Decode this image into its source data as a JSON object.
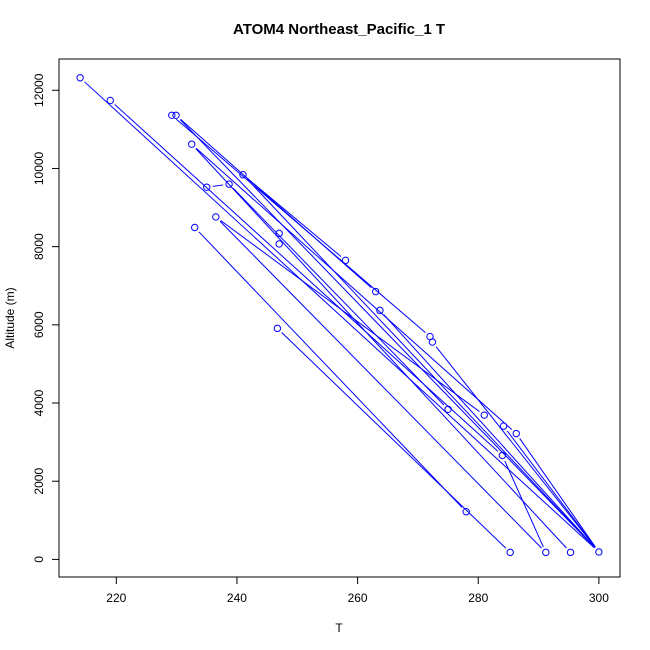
{
  "chart_data": {
    "type": "scatter",
    "title": "ATOM4 Northeast_Pacific_1 T",
    "xlabel": "T",
    "ylabel": "Altitude (m)",
    "xlim": [
      210.5,
      303.5
    ],
    "ylim": [
      -450,
      12800
    ],
    "x_ticks": [
      220,
      240,
      260,
      280,
      300
    ],
    "y_ticks": [
      0,
      2000,
      4000,
      6000,
      8000,
      10000,
      12000
    ],
    "x_tick_labels": [
      "220",
      "240",
      "260",
      "280",
      "300"
    ],
    "y_tick_labels": [
      "0",
      "2000",
      "4000",
      "6000",
      "8000",
      "10000",
      "12000"
    ],
    "grid": false,
    "marker": "open-circle",
    "connect_points": true,
    "color": "#0000ff",
    "points": [
      [
        214.0,
        12320
      ],
      [
        219.0,
        11740
      ],
      [
        229.2,
        11360
      ],
      [
        229.9,
        11360
      ],
      [
        232.5,
        10620
      ],
      [
        241.0,
        9840
      ],
      [
        238.7,
        9600
      ],
      [
        235.0,
        9520
      ],
      [
        236.5,
        8760
      ],
      [
        233.0,
        8490
      ],
      [
        247.0,
        8340
      ],
      [
        247.0,
        8070
      ],
      [
        258.0,
        7650
      ],
      [
        263.0,
        6850
      ],
      [
        263.7,
        6370
      ],
      [
        246.7,
        5910
      ],
      [
        272.0,
        5700
      ],
      [
        272.4,
        5560
      ],
      [
        275.0,
        3840
      ],
      [
        281.0,
        3690
      ],
      [
        284.2,
        3410
      ],
      [
        286.3,
        3220
      ],
      [
        284.0,
        2660
      ],
      [
        278.0,
        1220
      ],
      [
        285.3,
        180
      ],
      [
        291.2,
        180
      ],
      [
        295.3,
        180
      ],
      [
        300.0,
        190
      ]
    ],
    "segments": [
      [
        [
          214.0,
          12320
        ],
        [
          300.0,
          190
        ]
      ],
      [
        [
          219.0,
          11740
        ],
        [
          284.0,
          2660
        ]
      ],
      [
        [
          229.9,
          11360
        ],
        [
          300.0,
          190
        ]
      ],
      [
        [
          229.2,
          11360
        ],
        [
          272.0,
          5700
        ]
      ],
      [
        [
          229.9,
          11360
        ],
        [
          263.0,
          6850
        ]
      ],
      [
        [
          232.5,
          10620
        ],
        [
          286.3,
          3220
        ]
      ],
      [
        [
          232.5,
          10620
        ],
        [
          295.3,
          180
        ]
      ],
      [
        [
          241.0,
          9840
        ],
        [
          300.0,
          190
        ]
      ],
      [
        [
          241.0,
          9840
        ],
        [
          258.0,
          7650
        ]
      ],
      [
        [
          238.7,
          9600
        ],
        [
          235.0,
          9520
        ]
      ],
      [
        [
          238.7,
          9600
        ],
        [
          275.0,
          3840
        ]
      ],
      [
        [
          236.5,
          8760
        ],
        [
          291.2,
          180
        ]
      ],
      [
        [
          236.5,
          8760
        ],
        [
          281.0,
          3690
        ]
      ],
      [
        [
          233.0,
          8490
        ],
        [
          278.0,
          1220
        ]
      ],
      [
        [
          263.7,
          6370
        ],
        [
          300.0,
          190
        ]
      ],
      [
        [
          246.7,
          5910
        ],
        [
          285.3,
          180
        ]
      ],
      [
        [
          272.4,
          5560
        ],
        [
          300.0,
          190
        ]
      ],
      [
        [
          284.2,
          3410
        ],
        [
          300.0,
          190
        ]
      ],
      [
        [
          286.3,
          3220
        ],
        [
          300.0,
          190
        ]
      ],
      [
        [
          284.0,
          2660
        ],
        [
          291.2,
          180
        ]
      ]
    ]
  }
}
